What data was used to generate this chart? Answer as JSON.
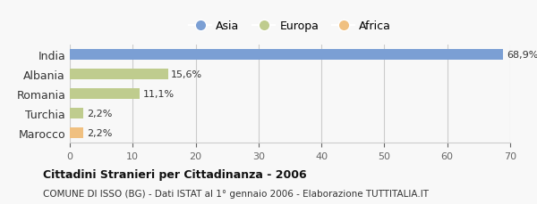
{
  "categories": [
    "India",
    "Albania",
    "Romania",
    "Turchia",
    "Marocco"
  ],
  "values": [
    68.9,
    15.6,
    11.1,
    2.2,
    2.2
  ],
  "labels": [
    "68,9%",
    "15,6%",
    "11,1%",
    "2,2%",
    "2,2%"
  ],
  "colors": [
    "#7b9fd4",
    "#bfcc8e",
    "#bfcc8e",
    "#bfcc8e",
    "#f0c080"
  ],
  "legend_items": [
    {
      "label": "Asia",
      "color": "#7b9fd4"
    },
    {
      "label": "Europa",
      "color": "#bfcc8e"
    },
    {
      "label": "Africa",
      "color": "#f0c080"
    }
  ],
  "xlim": [
    0,
    70
  ],
  "xticks": [
    0,
    10,
    20,
    30,
    40,
    50,
    60,
    70
  ],
  "title": "Cittadini Stranieri per Cittadinanza - 2006",
  "subtitle": "COMUNE DI ISSO (BG) - Dati ISTAT al 1° gennaio 2006 - Elaborazione TUTTITALIA.IT",
  "background_color": "#f8f8f8",
  "grid_color": "#cccccc",
  "bar_height": 0.55
}
